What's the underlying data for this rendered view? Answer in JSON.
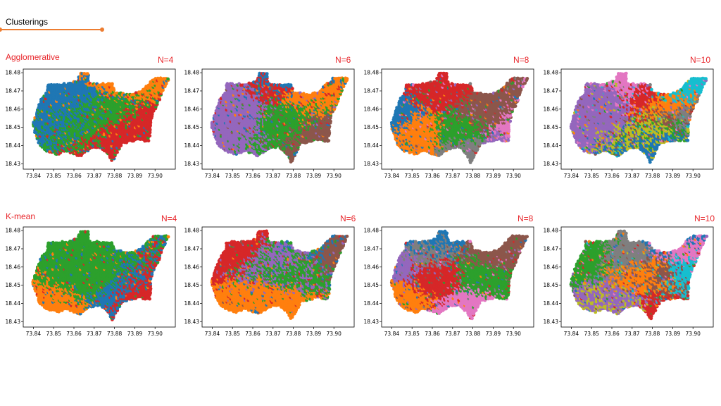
{
  "slide": {
    "title": "Clusterings"
  },
  "rows": [
    {
      "label": "Agglomerative"
    },
    {
      "label": "K-mean"
    }
  ],
  "colors": {
    "accent": "#ED7D31",
    "label_red": "#E8262B",
    "tab10": [
      "#1f77b4",
      "#ff7f0e",
      "#2ca02c",
      "#d62728",
      "#9467bd",
      "#8c564b",
      "#e377c2",
      "#7f7f7f",
      "#bcbd22",
      "#17becf"
    ]
  },
  "chart_data": [
    {
      "type": "scatter",
      "method": "Agglomerative",
      "title": "N=4",
      "n_clusters": 4,
      "dominant": [
        1,
        2,
        3,
        0
      ],
      "xlim": [
        73.835,
        73.91
      ],
      "ylim": [
        18.427,
        18.482
      ],
      "xticks": [
        "73.84",
        "73.85",
        "73.86",
        "73.87",
        "73.88",
        "73.89",
        "73.90"
      ],
      "yticks": [
        "18.43",
        "18.44",
        "18.45",
        "18.46",
        "18.47",
        "18.48"
      ]
    },
    {
      "type": "scatter",
      "method": "Agglomerative",
      "title": "N=6",
      "n_clusters": 6,
      "dominant": [
        1,
        5,
        3,
        4,
        2,
        0
      ],
      "xlim": [
        73.835,
        73.91
      ],
      "ylim": [
        18.427,
        18.482
      ],
      "xticks": [
        "73.84",
        "73.85",
        "73.86",
        "73.87",
        "73.88",
        "73.89",
        "73.90"
      ],
      "yticks": [
        "18.43",
        "18.44",
        "18.45",
        "18.46",
        "18.47",
        "18.48"
      ]
    },
    {
      "type": "scatter",
      "method": "Agglomerative",
      "title": "N=8",
      "n_clusters": 8,
      "dominant": [
        5,
        3,
        1,
        0,
        4,
        2,
        6,
        7
      ],
      "xlim": [
        73.835,
        73.91
      ],
      "ylim": [
        18.427,
        18.482
      ],
      "xticks": [
        "73.84",
        "73.85",
        "73.86",
        "73.87",
        "73.88",
        "73.89",
        "73.90"
      ],
      "yticks": [
        "18.43",
        "18.44",
        "18.45",
        "18.46",
        "18.47",
        "18.48"
      ]
    },
    {
      "type": "scatter",
      "method": "Agglomerative",
      "title": "N=10",
      "n_clusters": 10,
      "dominant": [
        8,
        5,
        9,
        2,
        4,
        3,
        1,
        0,
        6,
        7
      ],
      "xlim": [
        73.835,
        73.91
      ],
      "ylim": [
        18.427,
        18.482
      ],
      "xticks": [
        "73.84",
        "73.85",
        "73.86",
        "73.87",
        "73.88",
        "73.89",
        "73.90"
      ],
      "yticks": [
        "18.43",
        "18.44",
        "18.45",
        "18.46",
        "18.47",
        "18.48"
      ]
    },
    {
      "type": "scatter",
      "method": "K-mean",
      "title": "N=4",
      "n_clusters": 4,
      "dominant": [
        3,
        1,
        2,
        0
      ],
      "xlim": [
        73.835,
        73.91
      ],
      "ylim": [
        18.427,
        18.482
      ],
      "xticks": [
        "73.84",
        "73.85",
        "73.86",
        "73.87",
        "73.88",
        "73.89",
        "73.90"
      ],
      "yticks": [
        "18.43",
        "18.44",
        "18.45",
        "18.46",
        "18.47",
        "18.48"
      ]
    },
    {
      "type": "scatter",
      "method": "K-mean",
      "title": "N=6",
      "n_clusters": 6,
      "dominant": [
        0,
        2,
        3,
        1,
        5,
        4
      ],
      "xlim": [
        73.835,
        73.91
      ],
      "ylim": [
        18.427,
        18.482
      ],
      "xticks": [
        "73.84",
        "73.85",
        "73.86",
        "73.87",
        "73.88",
        "73.89",
        "73.90"
      ],
      "yticks": [
        "18.43",
        "18.44",
        "18.45",
        "18.46",
        "18.47",
        "18.48"
      ]
    },
    {
      "type": "scatter",
      "method": "K-mean",
      "title": "N=8",
      "n_clusters": 8,
      "dominant": [
        5,
        1,
        2,
        0,
        3,
        6,
        4,
        7
      ],
      "xlim": [
        73.835,
        73.91
      ],
      "ylim": [
        18.427,
        18.482
      ],
      "xticks": [
        "73.84",
        "73.85",
        "73.86",
        "73.87",
        "73.88",
        "73.89",
        "73.90"
      ],
      "yticks": [
        "18.43",
        "18.44",
        "18.45",
        "18.46",
        "18.47",
        "18.48"
      ]
    },
    {
      "type": "scatter",
      "method": "K-mean",
      "title": "N=10",
      "n_clusters": 10,
      "dominant": [
        9,
        7,
        8,
        2,
        3,
        1,
        0,
        4,
        6,
        5
      ],
      "xlim": [
        73.835,
        73.91
      ],
      "ylim": [
        18.427,
        18.482
      ],
      "xticks": [
        "73.84",
        "73.85",
        "73.86",
        "73.87",
        "73.88",
        "73.89",
        "73.90"
      ],
      "yticks": [
        "18.43",
        "18.44",
        "18.45",
        "18.46",
        "18.47",
        "18.48"
      ]
    }
  ]
}
